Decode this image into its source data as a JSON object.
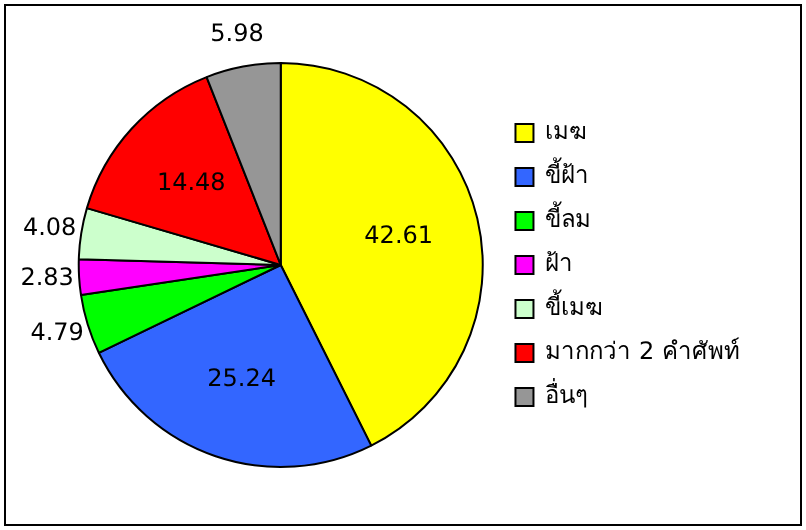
{
  "chart_data": {
    "type": "pie",
    "categories": [
      "เมฆ",
      "ขี้ฝ้า",
      "ขี้ลม",
      "ฝ้า",
      "ขี้เมฆ",
      "มากกว่า 2 คำศัพท์",
      "อื่นๆ"
    ],
    "values": [
      42.61,
      25.24,
      4.79,
      2.83,
      4.08,
      14.48,
      5.98
    ],
    "colors": [
      "#ffff00",
      "#3366ff",
      "#00ff00",
      "#ff00ff",
      "#ccffcc",
      "#ff0000",
      "#969696"
    ],
    "data_labels": true,
    "legend": "right"
  }
}
